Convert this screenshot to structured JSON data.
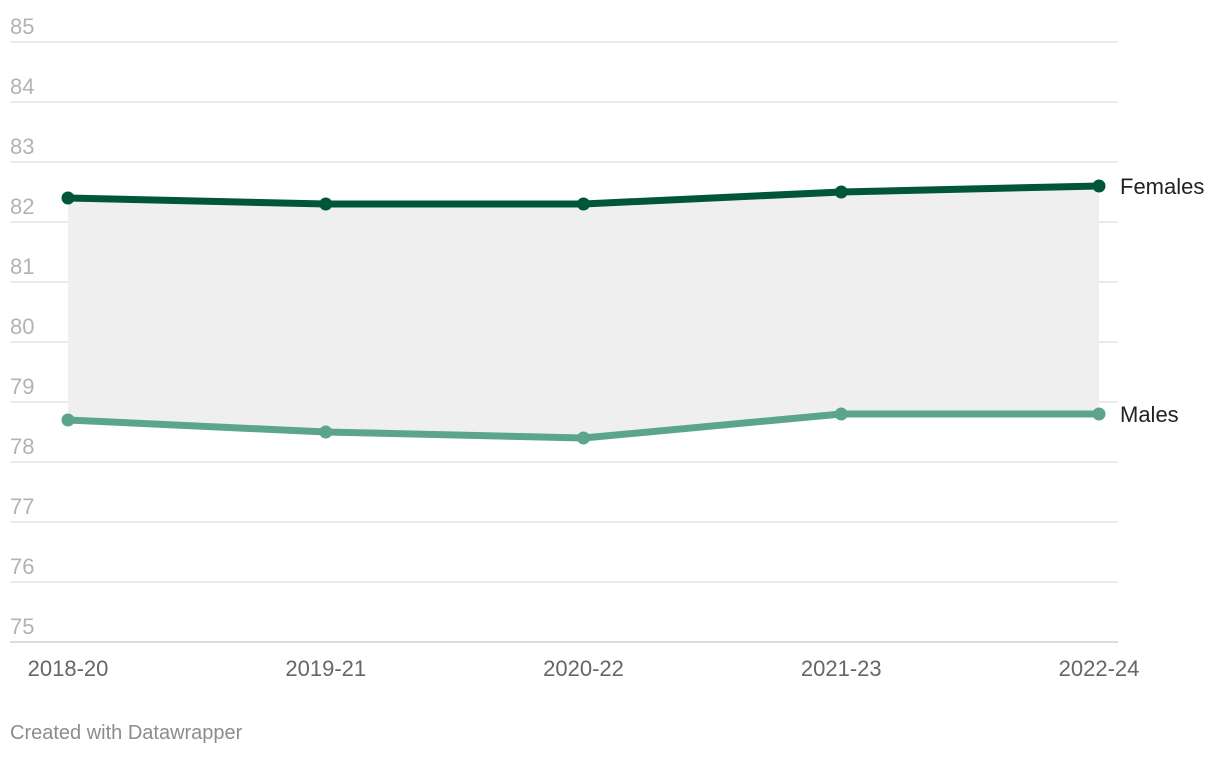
{
  "chart_data": {
    "type": "line",
    "categories": [
      "2018-20",
      "2019-21",
      "2020-22",
      "2021-23",
      "2022-24"
    ],
    "series": [
      {
        "name": "Females",
        "values": [
          82.4,
          82.3,
          82.3,
          82.5,
          82.6
        ],
        "color": "#00553a"
      },
      {
        "name": "Males",
        "values": [
          78.7,
          78.5,
          78.4,
          78.8,
          78.8
        ],
        "color": "#5ca58a"
      }
    ],
    "yticks": [
      "75",
      "76",
      "77",
      "78",
      "79",
      "80",
      "81",
      "82",
      "83",
      "84",
      "85"
    ],
    "ylim": [
      75,
      85
    ],
    "grid": true,
    "area_between_series": true,
    "area_color": "#efefef"
  },
  "footer": {
    "credit": "Created with Datawrapper"
  }
}
